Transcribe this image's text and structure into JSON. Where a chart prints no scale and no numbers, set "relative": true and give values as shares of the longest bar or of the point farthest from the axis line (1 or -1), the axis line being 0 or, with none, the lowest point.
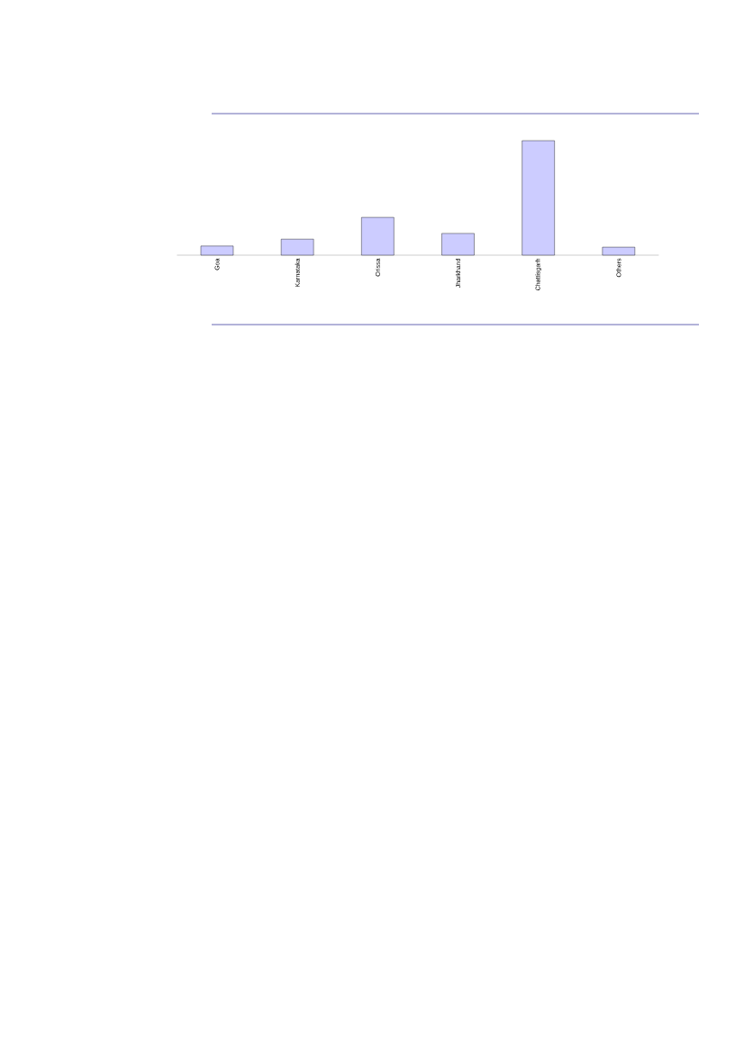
{
  "chart_data": {
    "type": "bar",
    "categories": [
      "Goa",
      "Karnataka",
      "Orissa",
      "Jharkhand",
      "Chattisgarh",
      "Others"
    ],
    "values": [
      0.08,
      0.14,
      0.33,
      0.19,
      1,
      0.07
    ],
    "color": "#ccccff",
    "relative": true
  }
}
